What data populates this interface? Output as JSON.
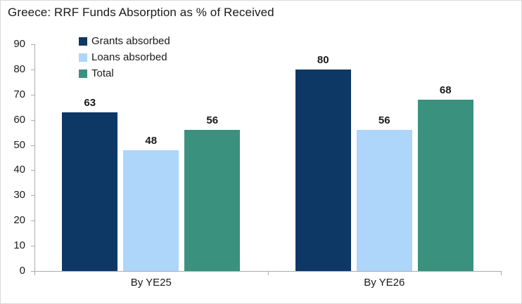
{
  "title": "Greece: RRF Funds Absorption as % of Received",
  "chart_data": {
    "type": "bar",
    "title": "Greece: RRF Funds Absorption as % of Received",
    "categories": [
      "By YE25",
      "By YE26"
    ],
    "series": [
      {
        "name": "Grants absorbed",
        "color": "#0d3866",
        "values": [
          63,
          80
        ]
      },
      {
        "name": "Loans absorbed",
        "color": "#aed5fa",
        "values": [
          48,
          56
        ]
      },
      {
        "name": "Total",
        "color": "#39917e",
        "values": [
          56,
          68
        ]
      }
    ],
    "ylim": [
      0,
      90
    ],
    "yticks": [
      0,
      10,
      20,
      30,
      40,
      50,
      60,
      70,
      80,
      90
    ],
    "xlabel": "",
    "ylabel": "",
    "grid": false,
    "legend_position": "top-left-inside",
    "axis_color": "#ababab"
  }
}
